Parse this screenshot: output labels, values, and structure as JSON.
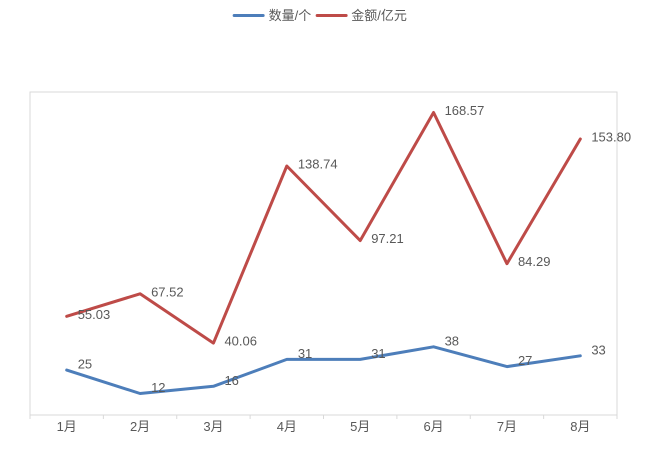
{
  "chart_data": {
    "type": "line",
    "title": "",
    "xlabel": "",
    "ylabel": "",
    "categories": [
      "1月",
      "2月",
      "3月",
      "4月",
      "5月",
      "6月",
      "7月",
      "8月"
    ],
    "series": [
      {
        "name": "数量/个",
        "color": "#4D7EBA",
        "values": [
          25,
          12,
          16,
          31,
          31,
          38,
          27,
          33
        ],
        "labels": [
          "25",
          "12",
          "16",
          "31",
          "31",
          "38",
          "27",
          "33"
        ]
      },
      {
        "name": "金额/亿元",
        "color": "#BE4B48",
        "values": [
          55.03,
          67.52,
          40.06,
          138.74,
          97.21,
          168.57,
          84.29,
          153.8
        ],
        "labels": [
          "55.03",
          "67.52",
          "40.06",
          "138.74",
          "97.21",
          "168.57",
          "84.29",
          "153.80"
        ]
      }
    ],
    "ylim": [
      0,
      180
    ],
    "grid": false,
    "legend_position": "top",
    "data_labels": true
  },
  "style": {
    "background": "#FFFFFF",
    "axis_color": "#D9D9D9",
    "label_color": "#595959"
  }
}
